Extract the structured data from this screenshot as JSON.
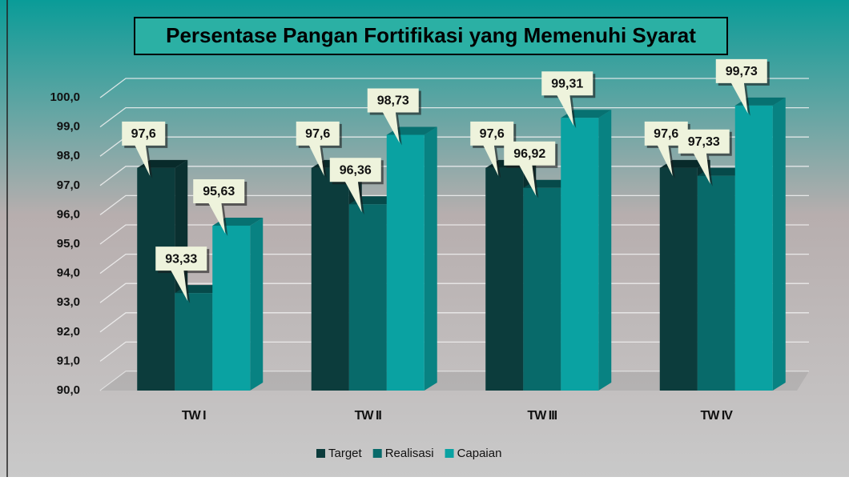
{
  "chart_data": {
    "type": "bar3d",
    "title": "Persentase Pangan Fortifikasi yang Memenuhi Syarat",
    "categories": [
      "TW I",
      "TW II",
      "TW III",
      "TW IV"
    ],
    "series": [
      {
        "name": "Target",
        "color": "#0c3c3c",
        "values": [
          97.6,
          97.6,
          97.6,
          97.6
        ],
        "value_labels": [
          "97,6",
          "97,6",
          "97,6",
          "97,6"
        ]
      },
      {
        "name": "Realisasi",
        "color": "#086a6a",
        "values": [
          93.33,
          96.36,
          96.92,
          97.33
        ],
        "value_labels": [
          "93,33",
          "96,36",
          "96,92",
          "97,33"
        ]
      },
      {
        "name": "Capaian",
        "color": "#0aa2a2",
        "values": [
          95.63,
          98.73,
          99.31,
          99.73
        ],
        "value_labels": [
          "95,63",
          "98,73",
          "99,31",
          "99,73"
        ]
      }
    ],
    "ylim": [
      90,
      100
    ],
    "yticks": [
      {
        "value": 90,
        "label": "90,0"
      },
      {
        "value": 91,
        "label": "91,0"
      },
      {
        "value": 92,
        "label": "92,0"
      },
      {
        "value": 93,
        "label": "93,0"
      },
      {
        "value": 94,
        "label": "94,0"
      },
      {
        "value": 95,
        "label": "95,0"
      },
      {
        "value": 96,
        "label": "96,0"
      },
      {
        "value": 97,
        "label": "97,0"
      },
      {
        "value": 98,
        "label": "98,0"
      },
      {
        "value": 99,
        "label": "99,0"
      },
      {
        "value": 100,
        "label": "100,0"
      }
    ],
    "grid": true,
    "legend": "bottom"
  }
}
